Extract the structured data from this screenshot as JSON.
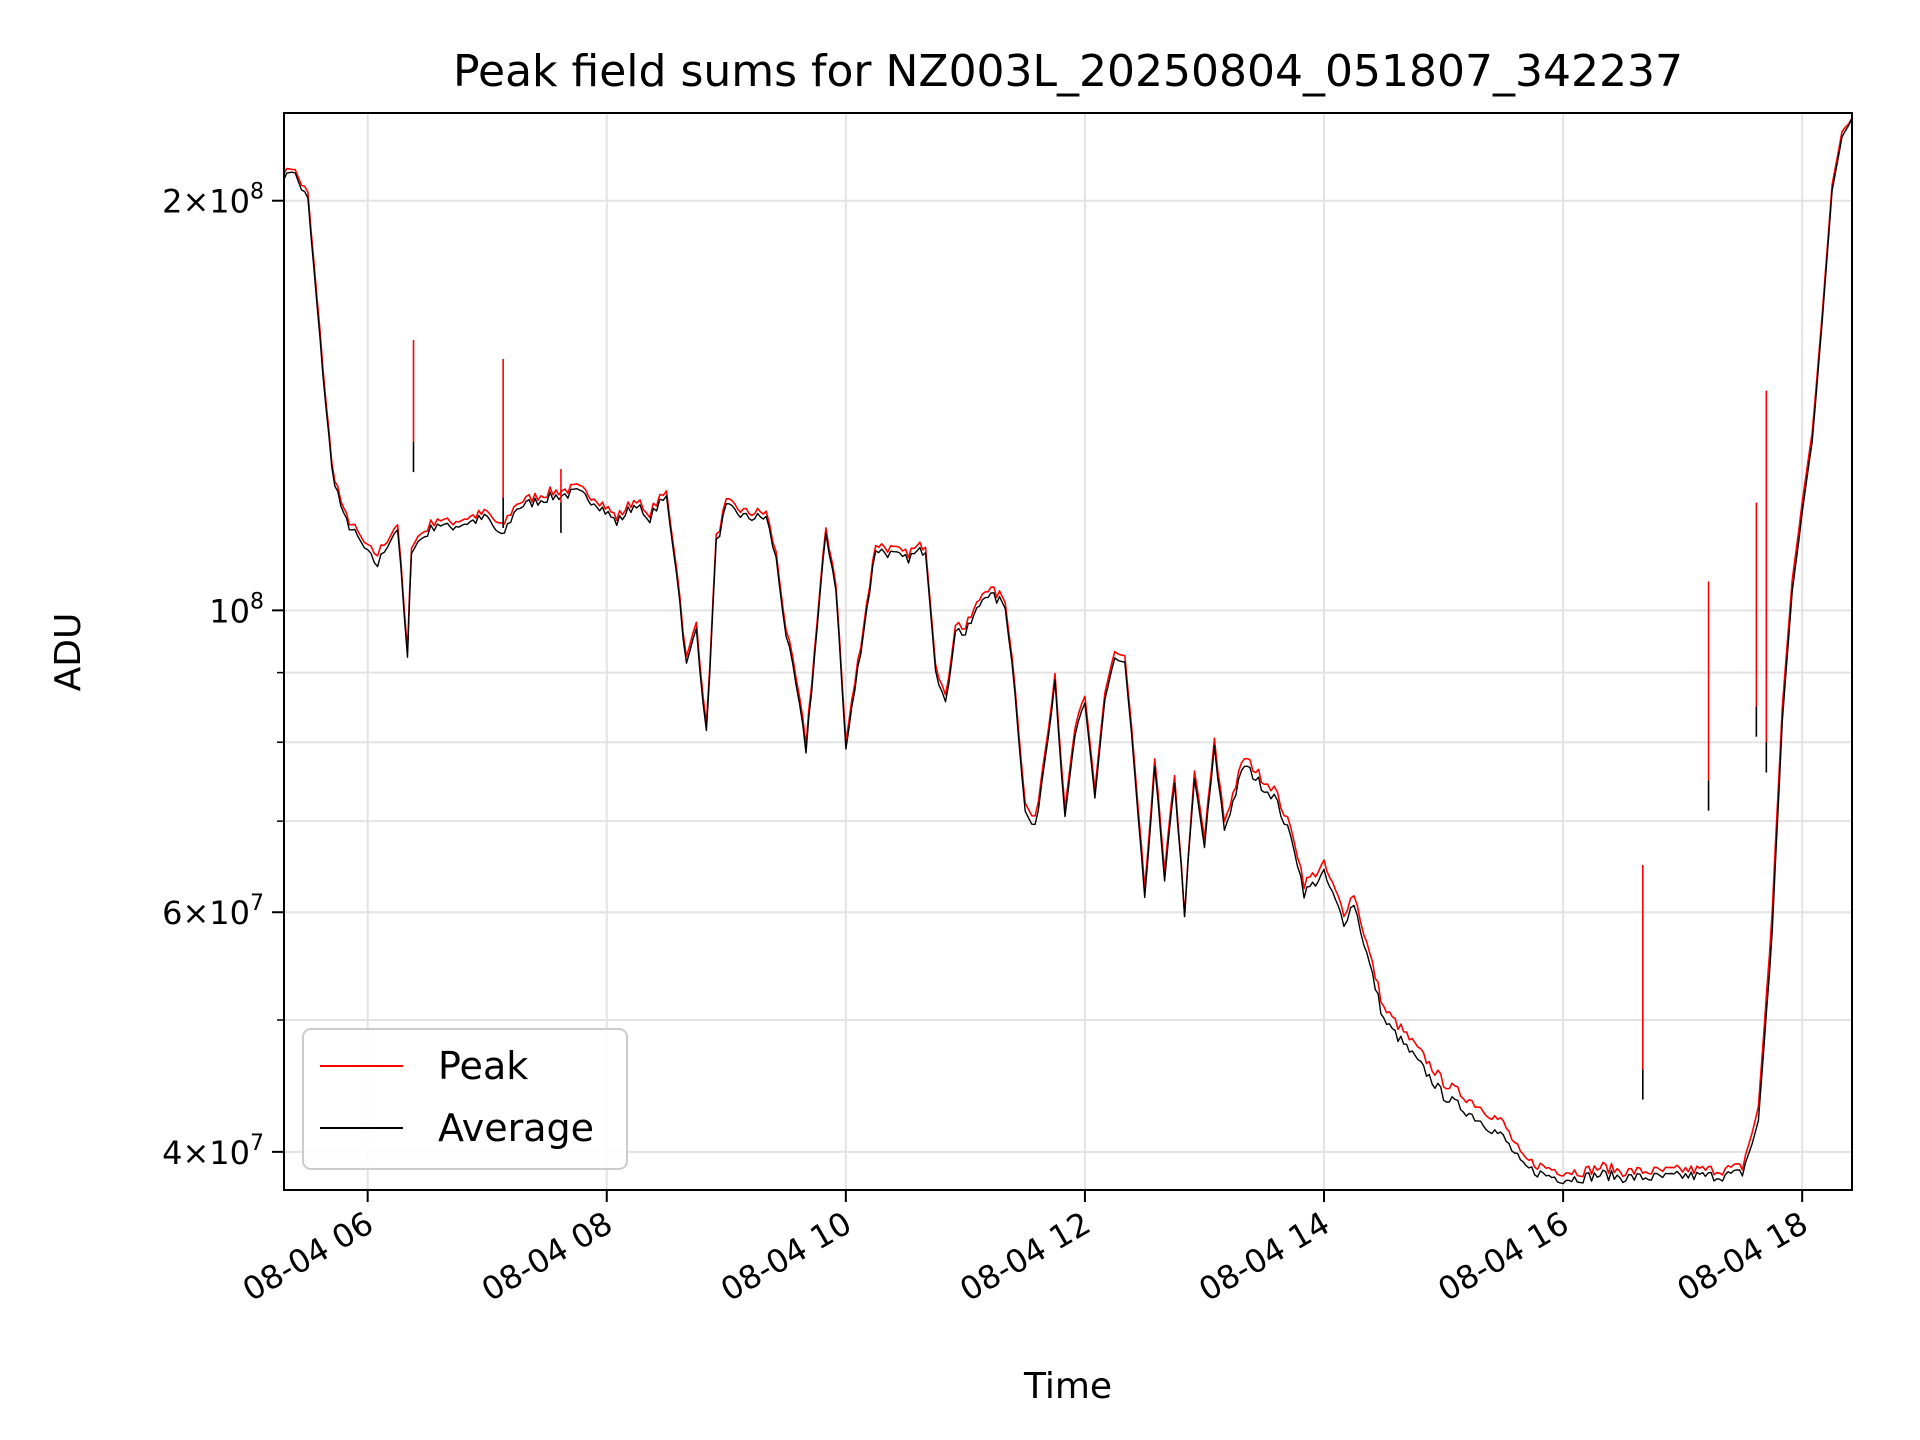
{
  "chart_data": {
    "type": "line",
    "title": "Peak field sums for NZ003L_20250804_051807_342237",
    "xlabel": "Time",
    "ylabel": "ADU",
    "y_scale": "log",
    "grid": true,
    "legend_position": "lower-left",
    "xlim": [
      "2025-08-04T05:18",
      "2025-08-04T18:25"
    ],
    "ylim": [
      37500000,
      232000000
    ],
    "x_ticks": [
      {
        "value": "2025-08-04T06:00",
        "label": "08-04 06"
      },
      {
        "value": "2025-08-04T08:00",
        "label": "08-04 08"
      },
      {
        "value": "2025-08-04T10:00",
        "label": "08-04 10"
      },
      {
        "value": "2025-08-04T12:00",
        "label": "08-04 12"
      },
      {
        "value": "2025-08-04T14:00",
        "label": "08-04 14"
      },
      {
        "value": "2025-08-04T16:00",
        "label": "08-04 16"
      },
      {
        "value": "2025-08-04T18:00",
        "label": "08-04 18"
      }
    ],
    "y_ticks": [
      {
        "value": 40000000,
        "mantissa": "4",
        "exponent": "7"
      },
      {
        "value": 60000000,
        "mantissa": "6",
        "exponent": "7"
      },
      {
        "value": 100000000,
        "mantissa": "",
        "exponent": "8"
      },
      {
        "value": 200000000,
        "mantissa": "2",
        "exponent": "8"
      }
    ],
    "y_minor_ticks": [
      50000000,
      70000000,
      80000000,
      90000000
    ],
    "series": [
      {
        "name": "Peak",
        "color": "#ff0000",
        "x": [
          "05:18",
          "05:22",
          "05:30",
          "05:36",
          "05:42",
          "05:48",
          "05:55",
          "06:00",
          "06:05",
          "06:10",
          "06:15",
          "06:20",
          "06:22",
          "06:30",
          "06:35",
          "06:40",
          "06:50",
          "07:00",
          "07:07",
          "07:15",
          "07:30",
          "07:45",
          "07:55",
          "08:05",
          "08:15",
          "08:20",
          "08:25",
          "08:30",
          "08:35",
          "08:40",
          "08:45",
          "08:50",
          "08:55",
          "09:00",
          "09:10",
          "09:20",
          "09:25",
          "09:30",
          "09:35",
          "09:40",
          "09:50",
          "09:55",
          "10:00",
          "10:15",
          "10:30",
          "10:40",
          "10:45",
          "10:50",
          "10:55",
          "11:00",
          "11:10",
          "11:20",
          "11:25",
          "11:30",
          "11:35",
          "11:40",
          "11:45",
          "11:50",
          "11:55",
          "12:00",
          "12:05",
          "12:10",
          "12:15",
          "12:20",
          "12:25",
          "12:30",
          "12:35",
          "12:40",
          "12:45",
          "12:50",
          "12:55",
          "13:00",
          "13:05",
          "13:10",
          "13:20",
          "13:30",
          "13:35",
          "13:40",
          "13:45",
          "13:50",
          "14:00",
          "14:10",
          "14:15",
          "14:20",
          "14:30",
          "14:40",
          "14:50",
          "15:00",
          "15:10",
          "15:20",
          "15:30",
          "15:40",
          "15:50",
          "16:00",
          "16:10",
          "16:20",
          "16:30",
          "16:40",
          "16:50",
          "17:00",
          "17:10",
          "17:20",
          "17:30",
          "17:38",
          "17:45",
          "17:50",
          "17:55",
          "18:00",
          "18:05",
          "18:10",
          "18:15",
          "18:20",
          "18:25"
        ],
        "values": [
          210000000,
          212000000,
          202000000,
          160000000,
          128000000,
          118000000,
          114000000,
          111000000,
          110000000,
          113000000,
          116000000,
          93000000,
          112000000,
          115000000,
          117000000,
          116000000,
          117000000,
          118000000,
          115000000,
          120000000,
          122000000,
          123000000,
          121000000,
          117000000,
          121000000,
          117000000,
          120000000,
          122000000,
          108000000,
          92000000,
          98000000,
          82000000,
          113000000,
          120000000,
          118000000,
          118000000,
          110000000,
          97000000,
          89000000,
          80000000,
          115000000,
          105000000,
          80000000,
          112000000,
          110000000,
          112000000,
          92000000,
          86000000,
          98000000,
          97000000,
          104000000,
          102000000,
          88000000,
          72000000,
          70000000,
          79000000,
          90000000,
          71000000,
          82000000,
          86000000,
          74000000,
          87000000,
          93000000,
          92000000,
          77000000,
          62000000,
          78000000,
          64000000,
          76000000,
          60000000,
          76000000,
          68000000,
          80000000,
          70000000,
          78000000,
          75000000,
          74000000,
          71000000,
          68000000,
          63000000,
          65000000,
          60000000,
          62000000,
          58000000,
          51000000,
          49000000,
          47000000,
          45000000,
          44000000,
          43000000,
          42000000,
          39500000,
          39000000,
          38700000,
          38700000,
          39000000,
          38700000,
          38700000,
          38700000,
          38800000,
          38800000,
          38800000,
          39000000,
          43000000,
          60000000,
          85000000,
          105000000,
          120000000,
          135000000,
          165000000,
          205000000,
          225000000,
          230000000
        ]
      },
      {
        "name": "Average",
        "color": "#000000",
        "x": [
          "05:18",
          "05:22",
          "05:30",
          "05:36",
          "05:42",
          "05:48",
          "05:55",
          "06:00",
          "06:05",
          "06:10",
          "06:15",
          "06:20",
          "06:22",
          "06:30",
          "06:35",
          "06:40",
          "06:50",
          "07:00",
          "07:07",
          "07:15",
          "07:30",
          "07:45",
          "07:55",
          "08:05",
          "08:15",
          "08:20",
          "08:25",
          "08:30",
          "08:35",
          "08:40",
          "08:45",
          "08:50",
          "08:55",
          "09:00",
          "09:10",
          "09:20",
          "09:25",
          "09:30",
          "09:35",
          "09:40",
          "09:50",
          "09:55",
          "10:00",
          "10:15",
          "10:30",
          "10:40",
          "10:45",
          "10:50",
          "10:55",
          "11:00",
          "11:10",
          "11:20",
          "11:25",
          "11:30",
          "11:35",
          "11:40",
          "11:45",
          "11:50",
          "11:55",
          "12:00",
          "12:05",
          "12:10",
          "12:15",
          "12:20",
          "12:25",
          "12:30",
          "12:35",
          "12:40",
          "12:45",
          "12:50",
          "12:55",
          "13:00",
          "13:05",
          "13:10",
          "13:20",
          "13:30",
          "13:35",
          "13:40",
          "13:45",
          "13:50",
          "14:00",
          "14:10",
          "14:15",
          "14:20",
          "14:30",
          "14:40",
          "14:50",
          "15:00",
          "15:10",
          "15:20",
          "15:30",
          "15:40",
          "15:50",
          "16:00",
          "16:10",
          "16:20",
          "16:30",
          "16:40",
          "16:50",
          "17:00",
          "17:10",
          "17:20",
          "17:30",
          "17:38",
          "17:45",
          "17:50",
          "17:55",
          "18:00",
          "18:05",
          "18:10",
          "18:15",
          "18:20",
          "18:25"
        ],
        "values": [
          208000000,
          211000000,
          200000000,
          158000000,
          127000000,
          117000000,
          113000000,
          110000000,
          108000000,
          112000000,
          115000000,
          92000000,
          111000000,
          114000000,
          116000000,
          115000000,
          116000000,
          117000000,
          113000000,
          119000000,
          121000000,
          122000000,
          120000000,
          116000000,
          120000000,
          116000000,
          119000000,
          121000000,
          107000000,
          91000000,
          97000000,
          81000000,
          112000000,
          119000000,
          117000000,
          117000000,
          109000000,
          96000000,
          88000000,
          79000000,
          114000000,
          104000000,
          79000000,
          111000000,
          109000000,
          111000000,
          91000000,
          85000000,
          97000000,
          96000000,
          103000000,
          101000000,
          87000000,
          71000000,
          69000000,
          78000000,
          89000000,
          70000000,
          81000000,
          85000000,
          73000000,
          86000000,
          92000000,
          91000000,
          76000000,
          61000000,
          77000000,
          63000000,
          75000000,
          60000000,
          75000000,
          67000000,
          79000000,
          69000000,
          77000000,
          74000000,
          73000000,
          70000000,
          67000000,
          62000000,
          64000000,
          59000000,
          61000000,
          57000000,
          50000000,
          48000000,
          46000000,
          44000000,
          43000000,
          42000000,
          41000000,
          39000000,
          38500000,
          38200000,
          38300000,
          38500000,
          38300000,
          38300000,
          38300000,
          38400000,
          38400000,
          38400000,
          38600000,
          42000000,
          58000000,
          83000000,
          103000000,
          118000000,
          133000000,
          163000000,
          203000000,
          223000000,
          230000000
        ]
      }
    ],
    "spikes": [
      {
        "time": "06:23",
        "peak": 158000000,
        "average": 133000000
      },
      {
        "time": "07:08",
        "peak": 153000000,
        "average": 121000000
      },
      {
        "time": "07:37",
        "peak": 127000000,
        "average": 120000000
      },
      {
        "time": "16:40",
        "peak": 65000000,
        "average": 46000000
      },
      {
        "time": "17:13",
        "peak": 105000000,
        "average": 75000000
      },
      {
        "time": "17:37",
        "peak": 120000000,
        "average": 85000000
      },
      {
        "time": "17:42",
        "peak": 145000000,
        "average": 80000000
      }
    ]
  }
}
